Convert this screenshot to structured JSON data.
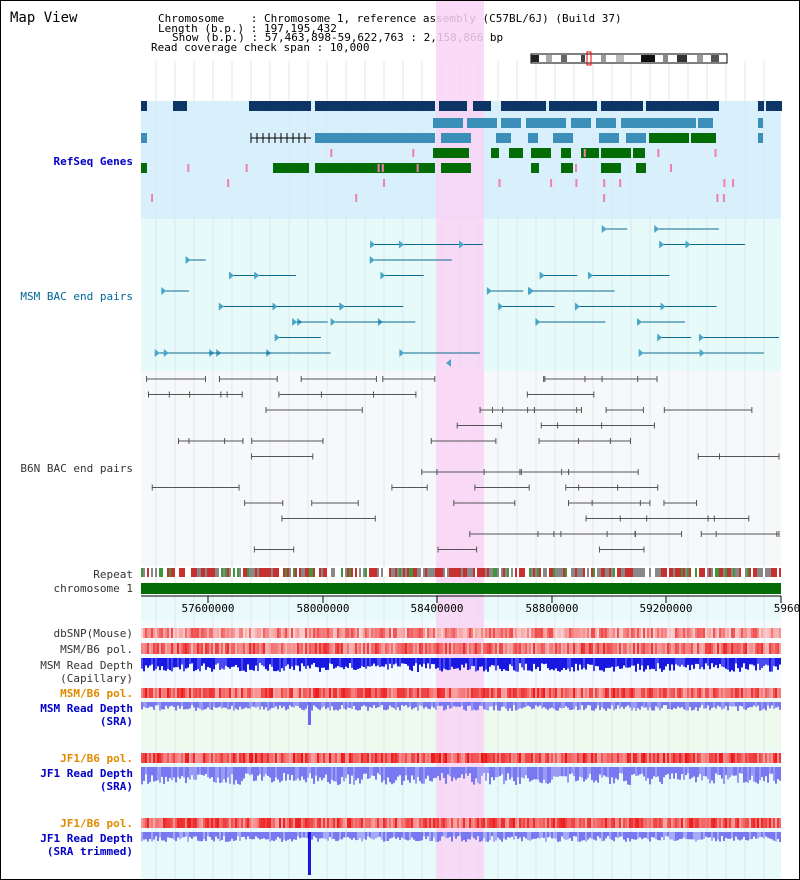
{
  "page": {
    "title": "Map View"
  },
  "info": {
    "chromosome_label": "Chromosome    :",
    "chromosome_value": "Chromosome 1, reference assembly (C57BL/6J) (Build 37)",
    "length_label": "Length (b.p.) :",
    "length_value": "197,195,432",
    "show_label": "Show (b.p.) :",
    "show_value": "57,463,898-59,622,763 : 2,158,866 bp",
    "span_label": "Read coverage check span :",
    "span_value": "10,000"
  },
  "tracks": {
    "refseq": "RefSeq Genes",
    "msm_bac": "MSM BAC end pairs",
    "b6n_bac": "B6N BAC end pairs",
    "repeat": "Repeat",
    "chromosome": "chromosome 1",
    "dbsnp": "dbSNP(Mouse)",
    "msm_pol": "MSM/B6 pol.",
    "msm_depth_cap_1": "MSM Read Depth",
    "msm_depth_cap_2": "(Capillary)",
    "msm_pol2": "MSM/B6 pol.",
    "msm_depth_sra_1": "MSM Read Depth",
    "msm_depth_sra_2": "(SRA)",
    "jf1_pol": "JF1/B6 pol.",
    "jf1_depth_sra_1": "JF1 Read Depth",
    "jf1_depth_sra_2": "(SRA)",
    "jf1_pol2": "JF1/B6 pol.",
    "jf1_depth_trim_1": "JF1 Read Depth",
    "jf1_depth_trim_2": "(SRA trimmed)"
  },
  "axis": {
    "ticks": [
      "57600000",
      "58000000",
      "58400000",
      "58800000",
      "59200000",
      "5960"
    ]
  },
  "colors": {
    "refseq_bg": "#d8f0fc",
    "bac_bg": "#e6fafa",
    "b6n_bg": "#f6f8fa",
    "highlight": "#f9d4f4",
    "gene_dark": "#0d3566",
    "gene_mid": "#3c8fb8",
    "gene_green": "#046c04",
    "bac_line": "#0a6b8f",
    "b6n_line": "#555555",
    "depth_blue": "#1818e0",
    "depth_light": "#7878f0",
    "pol_red": "#e82020",
    "chrom_green": "#046c04"
  }
}
